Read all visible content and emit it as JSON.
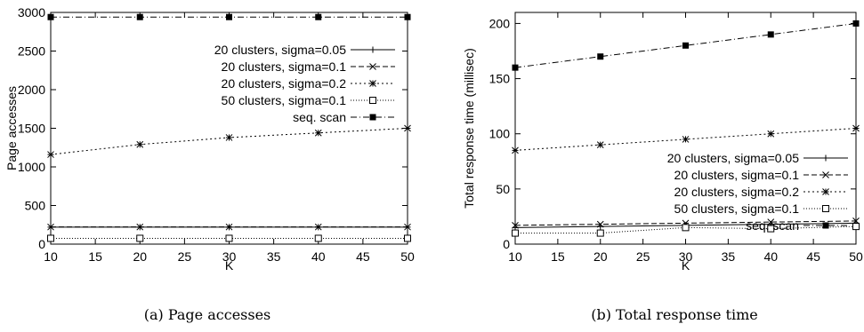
{
  "chart_data": [
    {
      "type": "line",
      "caption": "(a) Page accesses",
      "xlabel": "K",
      "ylabel": "Page accesses",
      "xlim": [
        10,
        50
      ],
      "ylim": [
        0,
        3000
      ],
      "xticks": [
        10,
        15,
        20,
        25,
        30,
        35,
        40,
        45,
        50
      ],
      "yticks": [
        0,
        500,
        1000,
        1500,
        2000,
        2500,
        3000
      ],
      "grid": false,
      "legend_position": "top-right",
      "x": [
        10,
        20,
        30,
        40,
        50
      ],
      "series": [
        {
          "name": "20 clusters, sigma=0.05",
          "marker": "plus",
          "dash": "solid",
          "values": [
            220,
            220,
            220,
            220,
            220
          ]
        },
        {
          "name": "20 clusters, sigma=0.1",
          "marker": "cross",
          "dash": "dashed",
          "values": [
            222,
            222,
            222,
            222,
            222
          ]
        },
        {
          "name": "20 clusters, sigma=0.2",
          "marker": "star",
          "dash": "dotted",
          "values": [
            1160,
            1290,
            1380,
            1440,
            1500
          ]
        },
        {
          "name": "50 clusters, sigma=0.1",
          "marker": "open-square",
          "dash": "dotted-fine",
          "values": [
            75,
            75,
            75,
            75,
            75
          ]
        },
        {
          "name": "seq. scan",
          "marker": "filled-square",
          "dash": "dashdot",
          "values": [
            2940,
            2940,
            2940,
            2940,
            2940
          ]
        }
      ]
    },
    {
      "type": "line",
      "caption": "(b) Total response time",
      "xlabel": "K",
      "ylabel": "Total response time (millisec)",
      "xlim": [
        10,
        50
      ],
      "ylim": [
        0,
        210
      ],
      "xticks": [
        10,
        15,
        20,
        25,
        30,
        35,
        40,
        45,
        50
      ],
      "yticks": [
        0,
        50,
        100,
        150,
        200
      ],
      "grid": false,
      "legend_position": "center-right",
      "x": [
        10,
        20,
        30,
        40,
        50
      ],
      "series": [
        {
          "name": "20 clusters, sigma=0.05",
          "marker": "plus",
          "dash": "solid",
          "values": [
            15,
            16,
            17,
            18,
            19
          ]
        },
        {
          "name": "20 clusters, sigma=0.1",
          "marker": "cross",
          "dash": "dashed",
          "values": [
            17,
            18,
            19,
            20,
            21
          ]
        },
        {
          "name": "20 clusters, sigma=0.2",
          "marker": "star",
          "dash": "dotted",
          "values": [
            85,
            90,
            95,
            100,
            105
          ]
        },
        {
          "name": "50 clusters, sigma=0.1",
          "marker": "open-square",
          "dash": "dotted-fine",
          "values": [
            10,
            10,
            15,
            14,
            16
          ]
        },
        {
          "name": "seq. scan",
          "marker": "filled-square",
          "dash": "dashdot",
          "values": [
            160,
            170,
            180,
            190,
            200
          ]
        }
      ]
    }
  ]
}
